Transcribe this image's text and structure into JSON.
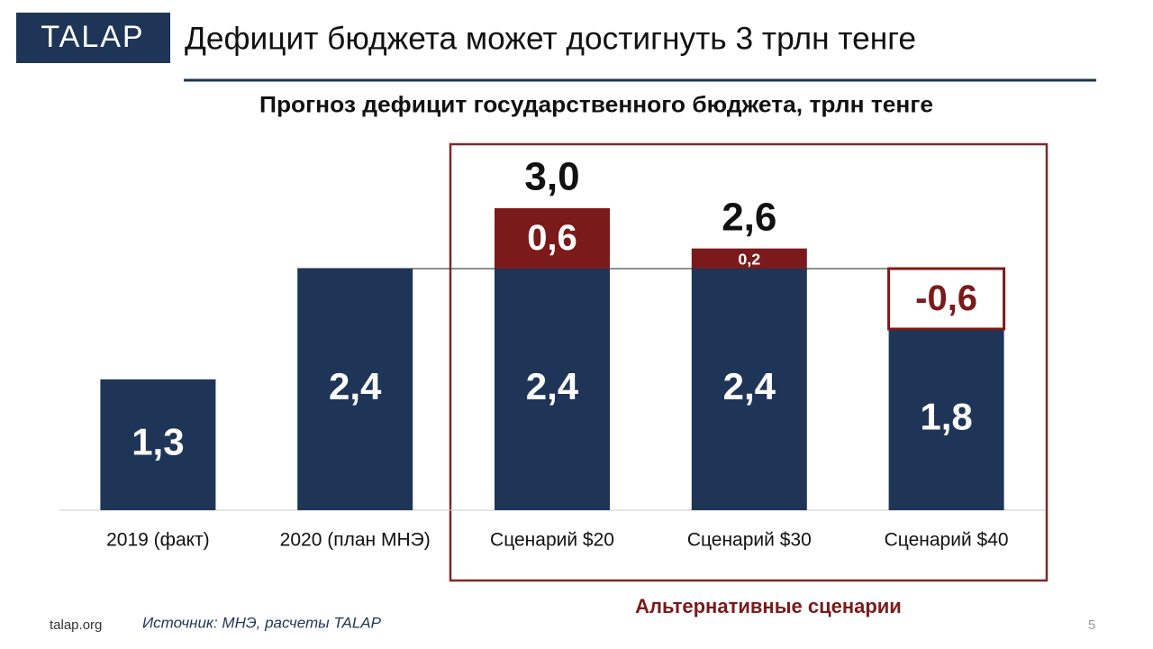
{
  "logo": "TALAP",
  "heading": "Дефицит бюджета может достигнуть 3 трлн тенге",
  "chart_data": {
    "type": "bar",
    "title": "Прогноз дефицит государственного бюджета, трлн тенге",
    "categories": [
      "2019 (факт)",
      "2020 (план МНЭ)",
      "Сценарий $20",
      "Сценарий $30",
      "Сценарий $40"
    ],
    "series": [
      {
        "color": "#1f3558",
        "values": [
          1.3,
          2.4,
          2.4,
          2.4,
          1.8
        ],
        "value_labels": [
          "1,3",
          "2,4",
          "2,4",
          "2,4",
          "1,8"
        ]
      },
      {
        "color": "#7b1a1a",
        "values": [
          null,
          null,
          0.6,
          0.2,
          -0.6
        ],
        "value_labels": [
          null,
          null,
          "0,6",
          "0,2",
          "-0,6"
        ]
      }
    ],
    "totals": {
      "values": [
        null,
        null,
        3.0,
        2.6,
        null
      ],
      "value_labels": [
        null,
        null,
        "3,0",
        "2,6",
        null
      ]
    },
    "reference_value": 2.4,
    "group_label": "Альтернативные сценарии"
  },
  "footer": {
    "site": "talap.org",
    "source": "Источник: МНЭ, расчеты TALAP",
    "page": "5"
  }
}
